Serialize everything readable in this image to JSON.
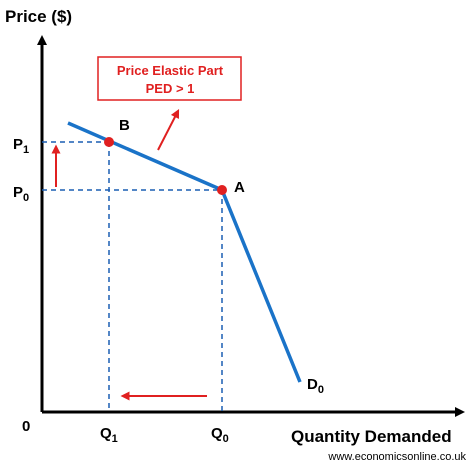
{
  "axes": {
    "y_label": "Price ($)",
    "x_label": "Quantity Demanded",
    "origin": "0"
  },
  "ticks": {
    "p1": {
      "main": "P",
      "sub": "1"
    },
    "p0": {
      "main": "P",
      "sub": "0"
    },
    "q1": {
      "main": "Q",
      "sub": "1"
    },
    "q0": {
      "main": "Q",
      "sub": "0"
    }
  },
  "points": {
    "b": "B",
    "a": "A"
  },
  "curve": {
    "main": "D",
    "sub": "0"
  },
  "annotation": {
    "line1": "Price Elastic Part",
    "line2": "PED > 1"
  },
  "footer": "www.economicsonline.co.uk",
  "colors": {
    "curve": "#1a73c8",
    "guide": "#1a5fb4",
    "accent": "#e02020",
    "axis": "#000000"
  },
  "icons": {
    "axis_arrows": "arrowhead",
    "annotation_arrows": "red-arrow"
  }
}
